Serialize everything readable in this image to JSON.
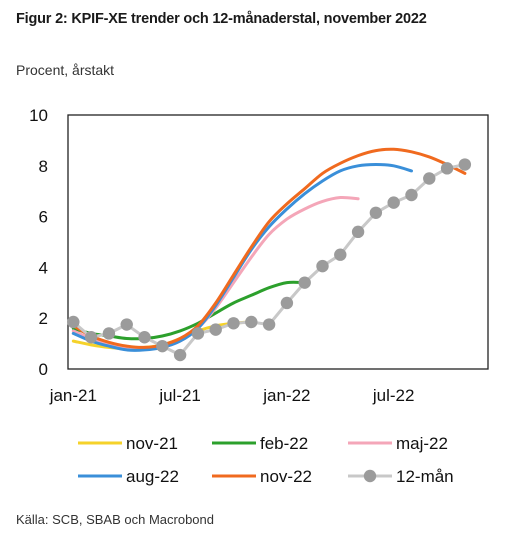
{
  "header": {
    "title": "Figur 2: KPIF-XE trender och 12-månaderstal, november 2022",
    "subtitle": "Procent, årstakt"
  },
  "footer": {
    "source": "Källa: SCB, SBAB och Macrobond"
  },
  "chart_data": {
    "type": "line",
    "title": "Figur 2: KPIF-XE trender och 12-månaderstal, november 2022",
    "ylabel": "Procent, årstakt",
    "xlabel": "",
    "ylim": [
      0,
      10
    ],
    "yticks": [
      0,
      2,
      4,
      6,
      8,
      10
    ],
    "xlim": [
      "2021-01",
      "2022-12"
    ],
    "xtick_labels": [
      {
        "label": "jan-21",
        "x": "2021-01"
      },
      {
        "label": "jul-21",
        "x": "2021-07"
      },
      {
        "label": "jan-22",
        "x": "2022-01"
      },
      {
        "label": "jul-22",
        "x": "2022-07"
      }
    ],
    "grid": false,
    "legend_position": "bottom",
    "series": [
      {
        "name": "nov-21",
        "color": "#f5d22a",
        "points": [
          [
            "2021-01",
            1.1
          ],
          [
            "2021-02",
            0.95
          ],
          [
            "2021-03",
            0.85
          ],
          [
            "2021-04",
            0.8
          ],
          [
            "2021-05",
            0.85
          ],
          [
            "2021-06",
            0.95
          ],
          [
            "2021-07",
            1.2
          ],
          [
            "2021-08",
            1.5
          ],
          [
            "2021-09",
            1.7
          ],
          [
            "2021-10",
            1.8
          ],
          [
            "2021-11",
            1.85
          ]
        ]
      },
      {
        "name": "feb-22",
        "color": "#2ca02c",
        "points": [
          [
            "2021-01",
            1.6
          ],
          [
            "2021-02",
            1.4
          ],
          [
            "2021-03",
            1.3
          ],
          [
            "2021-04",
            1.2
          ],
          [
            "2021-05",
            1.2
          ],
          [
            "2021-06",
            1.3
          ],
          [
            "2021-07",
            1.5
          ],
          [
            "2021-08",
            1.8
          ],
          [
            "2021-09",
            2.2
          ],
          [
            "2021-10",
            2.6
          ],
          [
            "2021-11",
            2.9
          ],
          [
            "2021-12",
            3.2
          ],
          [
            "2022-01",
            3.4
          ],
          [
            "2022-02",
            3.4
          ]
        ]
      },
      {
        "name": "maj-22",
        "color": "#f4a6b8",
        "points": [
          [
            "2021-01",
            1.5
          ],
          [
            "2021-02",
            1.2
          ],
          [
            "2021-03",
            1.0
          ],
          [
            "2021-04",
            0.85
          ],
          [
            "2021-05",
            0.8
          ],
          [
            "2021-06",
            0.85
          ],
          [
            "2021-07",
            1.1
          ],
          [
            "2021-08",
            1.6
          ],
          [
            "2021-09",
            2.4
          ],
          [
            "2021-10",
            3.4
          ],
          [
            "2021-11",
            4.4
          ],
          [
            "2021-12",
            5.3
          ],
          [
            "2022-01",
            5.9
          ],
          [
            "2022-02",
            6.3
          ],
          [
            "2022-03",
            6.6
          ],
          [
            "2022-04",
            6.75
          ],
          [
            "2022-05",
            6.7
          ]
        ]
      },
      {
        "name": "aug-22",
        "color": "#3a8fd9",
        "points": [
          [
            "2021-01",
            1.4
          ],
          [
            "2021-02",
            1.1
          ],
          [
            "2021-03",
            0.9
          ],
          [
            "2021-04",
            0.75
          ],
          [
            "2021-05",
            0.75
          ],
          [
            "2021-06",
            0.85
          ],
          [
            "2021-07",
            1.1
          ],
          [
            "2021-08",
            1.6
          ],
          [
            "2021-09",
            2.5
          ],
          [
            "2021-10",
            3.6
          ],
          [
            "2021-11",
            4.7
          ],
          [
            "2021-12",
            5.6
          ],
          [
            "2022-01",
            6.3
          ],
          [
            "2022-02",
            6.9
          ],
          [
            "2022-03",
            7.4
          ],
          [
            "2022-04",
            7.8
          ],
          [
            "2022-05",
            8.0
          ],
          [
            "2022-06",
            8.05
          ],
          [
            "2022-07",
            8.0
          ],
          [
            "2022-08",
            7.8
          ]
        ]
      },
      {
        "name": "nov-22",
        "color": "#f06a1f",
        "points": [
          [
            "2021-01",
            1.7
          ],
          [
            "2021-02",
            1.3
          ],
          [
            "2021-03",
            1.05
          ],
          [
            "2021-04",
            0.9
          ],
          [
            "2021-05",
            0.85
          ],
          [
            "2021-06",
            0.95
          ],
          [
            "2021-07",
            1.2
          ],
          [
            "2021-08",
            1.7
          ],
          [
            "2021-09",
            2.6
          ],
          [
            "2021-10",
            3.7
          ],
          [
            "2021-11",
            4.8
          ],
          [
            "2021-12",
            5.8
          ],
          [
            "2022-01",
            6.5
          ],
          [
            "2022-02",
            7.1
          ],
          [
            "2022-03",
            7.7
          ],
          [
            "2022-04",
            8.1
          ],
          [
            "2022-05",
            8.4
          ],
          [
            "2022-06",
            8.6
          ],
          [
            "2022-07",
            8.65
          ],
          [
            "2022-08",
            8.55
          ],
          [
            "2022-09",
            8.35
          ],
          [
            "2022-10",
            8.05
          ],
          [
            "2022-11",
            7.7
          ]
        ]
      },
      {
        "name": "12-mån",
        "color": "#c8c8c8",
        "marker": "circle",
        "points": [
          [
            "2021-01",
            1.85
          ],
          [
            "2021-02",
            1.25
          ],
          [
            "2021-03",
            1.4
          ],
          [
            "2021-04",
            1.75
          ],
          [
            "2021-05",
            1.25
          ],
          [
            "2021-06",
            0.9
          ],
          [
            "2021-07",
            0.55
          ],
          [
            "2021-08",
            1.4
          ],
          [
            "2021-09",
            1.55
          ],
          [
            "2021-10",
            1.8
          ],
          [
            "2021-11",
            1.85
          ],
          [
            "2021-12",
            1.75
          ],
          [
            "2022-01",
            2.6
          ],
          [
            "2022-02",
            3.4
          ],
          [
            "2022-03",
            4.05
          ],
          [
            "2022-04",
            4.5
          ],
          [
            "2022-05",
            5.4
          ],
          [
            "2022-06",
            6.15
          ],
          [
            "2022-07",
            6.55
          ],
          [
            "2022-08",
            6.85
          ],
          [
            "2022-09",
            7.5
          ],
          [
            "2022-10",
            7.9
          ],
          [
            "2022-11",
            8.05
          ]
        ]
      }
    ]
  }
}
